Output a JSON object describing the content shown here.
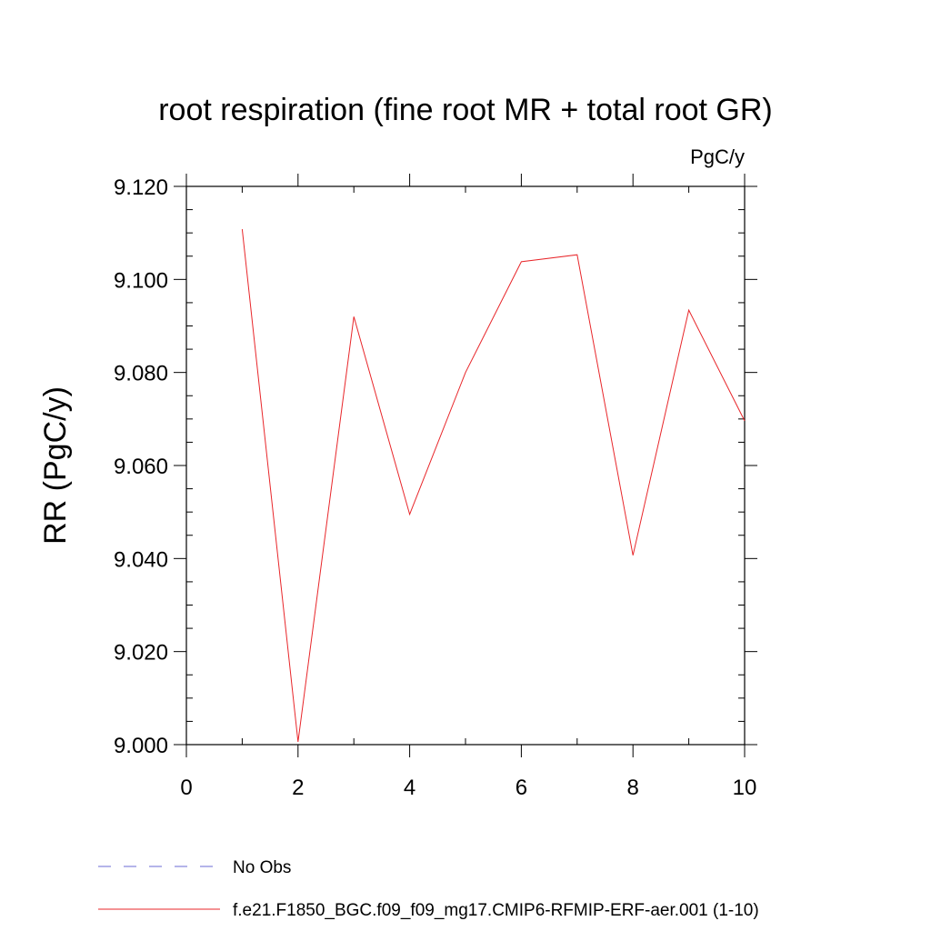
{
  "chart_data": {
    "type": "line",
    "title": "root respiration (fine root MR + total root GR)",
    "units_label": "PgC/y",
    "ylabel": "RR  (PgC/y)",
    "xlabel": "",
    "xlim": [
      0,
      10
    ],
    "ylim": [
      9.0,
      9.12
    ],
    "x_ticks": [
      0,
      2,
      4,
      6,
      8,
      10
    ],
    "x_tick_labels": [
      "0",
      "2",
      "4",
      "6",
      "8",
      "10"
    ],
    "x_minor_ticks": [
      1,
      3,
      5,
      7,
      9
    ],
    "y_ticks": [
      9.0,
      9.02,
      9.04,
      9.06,
      9.08,
      9.1,
      9.12
    ],
    "y_tick_labels": [
      "9.000",
      "9.020",
      "9.040",
      "9.060",
      "9.080",
      "9.100",
      "9.120"
    ],
    "y_minor_step": 0.005,
    "grid": false,
    "legend_position": "bottom-left",
    "series": [
      {
        "name": "f.e21.F1850_BGC.f09_f09_mg17.CMIP6-RFMIP-ERF-aer.001 (1-10)",
        "color": "#e8262a",
        "style": "solid",
        "x": [
          1,
          2,
          3,
          4,
          5,
          6,
          7,
          8,
          9,
          10
        ],
        "y": [
          9.1108,
          9.0006,
          9.092,
          9.0495,
          9.08,
          9.1038,
          9.1053,
          9.0407,
          9.0934,
          9.0696
        ]
      }
    ],
    "legend": [
      {
        "label": "No Obs",
        "color": "#6b6bd6",
        "style": "dashed"
      },
      {
        "label": "f.e21.F1850_BGC.f09_f09_mg17.CMIP6-RFMIP-ERF-aer.001 (1-10)",
        "color": "#e8262a",
        "style": "solid"
      }
    ]
  }
}
